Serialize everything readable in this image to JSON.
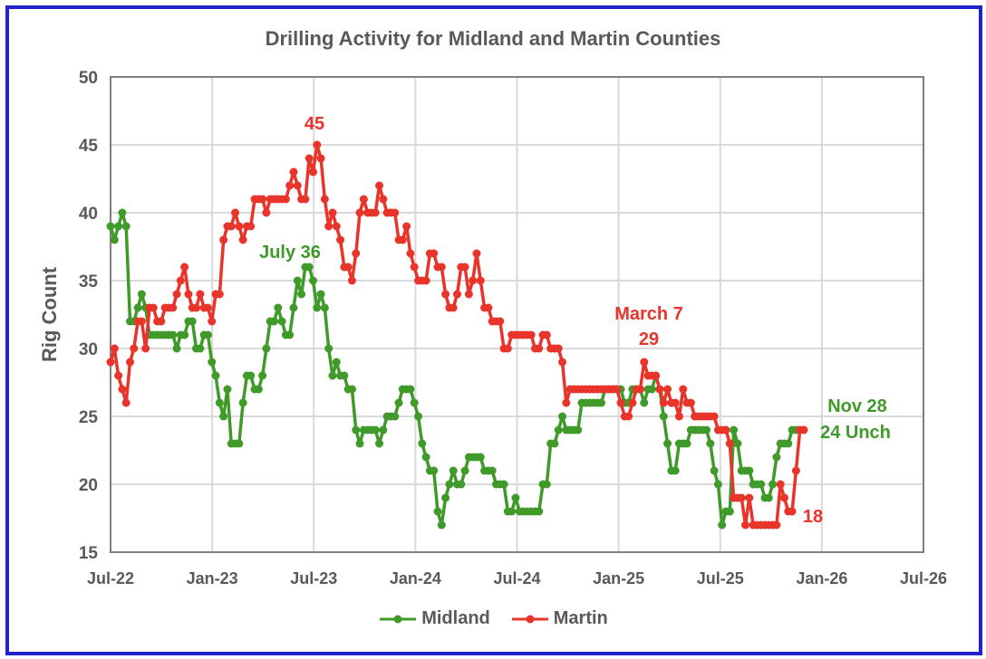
{
  "chart_data": {
    "type": "line",
    "title": "Drilling Activity for Midland and Martin Counties",
    "xlabel": "",
    "ylabel": "Rig Count",
    "ylim": [
      15,
      50
    ],
    "yticks": [
      "15",
      "20",
      "25",
      "30",
      "35",
      "40",
      "45",
      "50"
    ],
    "xticks": [
      "Jul-22",
      "Jan-23",
      "Jul-23",
      "Jan-24",
      "Jul-24",
      "Jan-25",
      "Jul-25",
      "Jan-26",
      "Jul-26"
    ],
    "grid": true,
    "legend_position": "bottom",
    "x_unit": "weeks since Jul 1 2022",
    "series": [
      {
        "name": "Midland",
        "color": "#3f9a2a",
        "values": [
          39,
          38,
          39,
          40,
          39,
          32,
          32,
          33,
          34,
          33,
          31,
          31,
          31,
          31,
          31,
          31,
          31,
          30,
          31,
          31,
          32,
          32,
          30,
          30,
          31,
          31,
          29,
          28,
          26,
          25,
          27,
          23,
          23,
          23,
          26,
          28,
          28,
          27,
          27,
          28,
          30,
          32,
          32,
          33,
          32,
          31,
          31,
          33,
          35,
          34,
          36,
          36,
          35,
          33,
          34,
          33,
          30,
          28,
          29,
          28,
          28,
          27,
          27,
          24,
          23,
          24,
          24,
          24,
          24,
          23,
          24,
          25,
          25,
          25,
          26,
          27,
          27,
          27,
          26,
          25,
          23,
          22,
          21,
          21,
          18,
          17,
          19,
          20,
          21,
          20,
          20,
          21,
          22,
          22,
          22,
          22,
          21,
          21,
          21,
          20,
          20,
          20,
          18,
          18,
          19,
          18,
          18,
          18,
          18,
          18,
          18,
          20,
          20,
          23,
          23,
          24,
          25,
          24,
          24,
          24,
          24,
          26,
          26,
          26,
          26,
          26,
          26,
          27,
          27,
          27,
          27,
          27,
          26,
          26,
          27,
          27,
          27,
          26,
          27,
          27,
          28,
          27,
          25,
          23,
          21,
          21,
          23,
          23,
          23,
          24,
          24,
          24,
          24,
          24,
          23,
          21,
          20,
          17,
          18,
          18,
          24,
          23,
          21,
          21,
          21,
          20,
          20,
          20,
          19,
          19,
          20,
          22,
          23,
          23,
          23,
          24,
          24,
          24
        ]
      },
      {
        "name": "Martin",
        "color": "#e8342a",
        "values": [
          29,
          30,
          28,
          27,
          26,
          29,
          30,
          32,
          32,
          30,
          33,
          33,
          32,
          32,
          33,
          33,
          33,
          34,
          35,
          36,
          34,
          33,
          33,
          34,
          33,
          33,
          32,
          34,
          34,
          38,
          39,
          39,
          40,
          39,
          38,
          39,
          39,
          41,
          41,
          41,
          40,
          41,
          41,
          41,
          41,
          41,
          42,
          43,
          42,
          41,
          41,
          44,
          43,
          45,
          44,
          41,
          39,
          40,
          39,
          38,
          36,
          36,
          35,
          37,
          40,
          41,
          40,
          40,
          40,
          42,
          41,
          40,
          40,
          40,
          38,
          38,
          39,
          37,
          36,
          35,
          35,
          35,
          37,
          37,
          36,
          36,
          34,
          33,
          33,
          34,
          36,
          36,
          34,
          35,
          37,
          35,
          33,
          33,
          32,
          32,
          32,
          30,
          30,
          31,
          31,
          31,
          31,
          31,
          31,
          30,
          30,
          31,
          31,
          30,
          30,
          30,
          29,
          26,
          27,
          27,
          27,
          27,
          27,
          27,
          27,
          27,
          27,
          27,
          27,
          27,
          27,
          26,
          25,
          25,
          26,
          27,
          27,
          29,
          28,
          28,
          28,
          27,
          26,
          27,
          26,
          26,
          25,
          27,
          26,
          26,
          25,
          25,
          25,
          25,
          25,
          25,
          24,
          24,
          24,
          23,
          19,
          19,
          19,
          17,
          19,
          17,
          17,
          17,
          17,
          17,
          17,
          17,
          20,
          19,
          18,
          18,
          21,
          24,
          24
        ]
      }
    ],
    "annotations": [
      {
        "text": "45",
        "series": "Martin"
      },
      {
        "text": "July 36",
        "series": "Midland"
      },
      {
        "text": "March 7",
        "series": "Martin"
      },
      {
        "text": "29",
        "series": "Martin"
      },
      {
        "text": "Nov 28",
        "series": "Midland"
      },
      {
        "text": "24 Unch",
        "series": "Midland"
      },
      {
        "text": "18",
        "series": "Martin"
      }
    ]
  }
}
